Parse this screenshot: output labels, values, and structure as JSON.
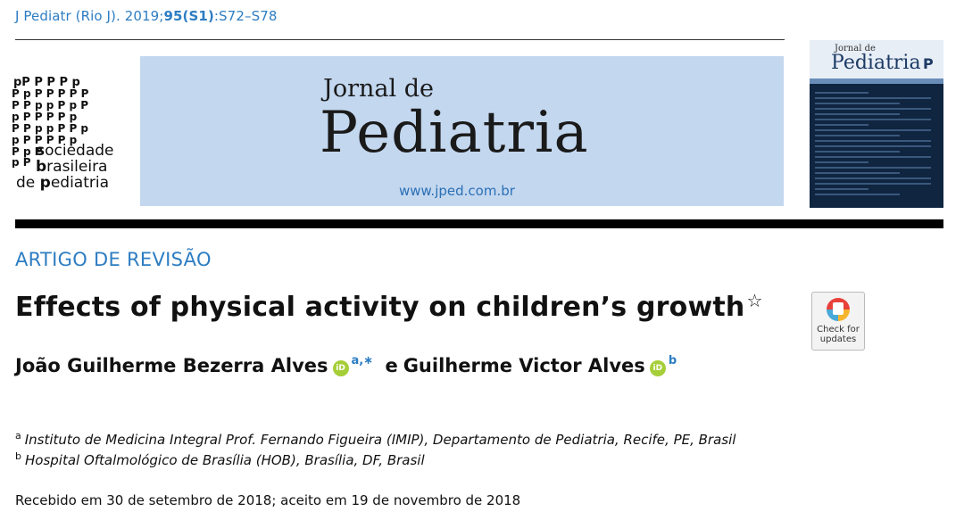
{
  "header": {
    "citation_prefix": "J Pediatr (Rio J). 2019;",
    "citation_volume": "95(S1)",
    "citation_pages": ":S72–S78"
  },
  "society_logo": {
    "line1_bold": "s",
    "line1_rest": "ociedade",
    "line2_bold": "b",
    "line2_rest": "rasileira",
    "line3_plain": "de ",
    "line3_bold": "p",
    "line3_rest": "ediatria"
  },
  "journal": {
    "name_small": "Jornal de",
    "name_large": "Pediatria",
    "url": "www.jped.com.br"
  },
  "cover": {
    "jde": "Jornal de",
    "title": "Pediatria"
  },
  "article": {
    "section": "ARTIGO DE REVISÃO",
    "title": "Effects of physical activity on children’s growth",
    "title_mark": "☆",
    "check_updates_line1": "Check for",
    "check_updates_line2": "updates",
    "orcid_label": "iD",
    "author1": "João Guilherme Bezerra Alves",
    "author1_sup": "a,∗",
    "connector": "e",
    "author2": "Guilherme Victor Alves",
    "author2_sup": "b"
  },
  "affiliations": [
    {
      "mark": "a",
      "text": "Instituto de Medicina Integral Prof. Fernando Figueira (IMIP), Departamento de Pediatria, Recife, PE, Brasil"
    },
    {
      "mark": "b",
      "text": "Hospital Oftalmológico de Brasília (HOB), Brasília, DF, Brasil"
    }
  ],
  "received": "Recebido em 30 de setembro de 2018; aceito em 19 de novembro de 2018",
  "colors": {
    "accent_blue": "#2d7dc2",
    "banner_bg": "#c3d7ef",
    "orcid_green": "#a6ce39"
  }
}
